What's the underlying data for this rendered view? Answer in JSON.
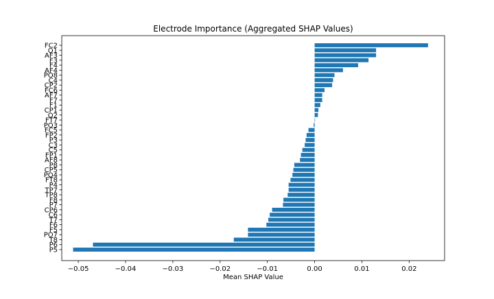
{
  "chart_data": {
    "type": "bar",
    "orientation": "horizontal",
    "title": "Electrode Importance (Aggregated SHAP Values)",
    "xlabel": "Mean SHAP Value",
    "ylabel": "",
    "xlim": [
      -0.0535,
      0.0275
    ],
    "xticks": [
      -0.05,
      -0.04,
      -0.03,
      -0.02,
      -0.01,
      0.0,
      0.01,
      0.02
    ],
    "xtick_labels": [
      "−0.05",
      "−0.04",
      "−0.03",
      "−0.02",
      "−0.01",
      "0.00",
      "0.01",
      "0.02"
    ],
    "grid": false,
    "bar_color": "#1f77b4",
    "categories": [
      "FC2",
      "O1",
      "AF3",
      "F3",
      "F4",
      "AF4",
      "PO8",
      "C4",
      "CP2",
      "FC6",
      "AF7",
      "F7",
      "F1",
      "CP1",
      "O2",
      "FT7",
      "PO3",
      "FC5",
      "FP2",
      "P3",
      "C3",
      "C5",
      "FP1",
      "AF8",
      "P8",
      "CP5",
      "PO4",
      "FT8",
      "P4",
      "TP7",
      "TP8",
      "F8",
      "P7",
      "CP6",
      "C6",
      "T7",
      "F6",
      "F5",
      "PO7",
      "T8",
      "P6",
      "P5"
    ],
    "values": [
      0.024,
      0.013,
      0.013,
      0.0114,
      0.0092,
      0.006,
      0.0042,
      0.0039,
      0.0037,
      0.0021,
      0.0016,
      0.0016,
      0.0012,
      0.0008,
      0.0007,
      0.0,
      -0.0002,
      -0.0013,
      -0.0017,
      -0.0019,
      -0.0021,
      -0.0026,
      -0.0029,
      -0.0031,
      -0.0043,
      -0.0045,
      -0.0047,
      -0.0051,
      -0.0055,
      -0.0055,
      -0.0057,
      -0.0066,
      -0.0067,
      -0.009,
      -0.0095,
      -0.0098,
      -0.0102,
      -0.0141,
      -0.0141,
      -0.0171,
      -0.0469,
      -0.0511
    ]
  }
}
